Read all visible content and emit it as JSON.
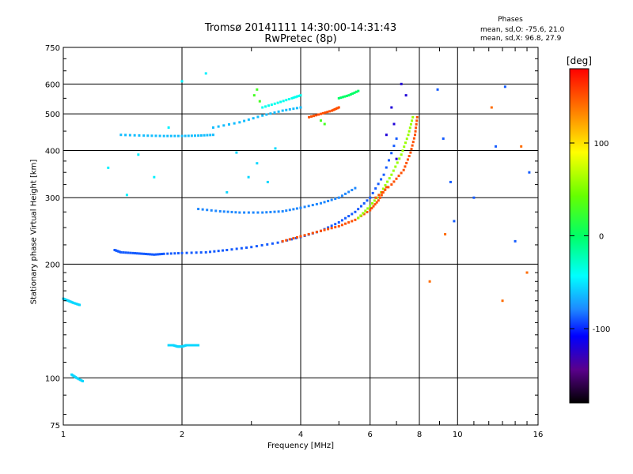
{
  "chart_data": {
    "type": "scatter",
    "title": "Tromsø 20141111 14:30:00-14:31:43",
    "subtitle": "RwPretec (8p)",
    "xlabel": "Frequency [MHz]",
    "ylabel": "Stationary phase Virtual Height [km]",
    "x_scale": "log",
    "y_scale": "log",
    "xlim": [
      1,
      16
    ],
    "ylim": [
      75,
      750
    ],
    "x_ticks": [
      1,
      2,
      4,
      6,
      8,
      10,
      16
    ],
    "y_ticks": [
      75,
      100,
      200,
      300,
      400,
      500,
      600,
      750
    ],
    "grid": true,
    "colorbar": {
      "unit": "[deg]",
      "range": [
        -180,
        180
      ],
      "ticks": [
        100,
        0,
        -100
      ]
    },
    "phases_header": "Phases",
    "stats": [
      "mean, sd,O: -75.6, 21.0",
      "mean, sd,X:  96.8, 27.9"
    ],
    "traces": [
      {
        "name": "",
        "phase": -100,
        "x": [
          1.35,
          1.4,
          1.5,
          1.6,
          1.7,
          1.8,
          2.0,
          2.3,
          2.6,
          3.0,
          3.5,
          4.0,
          4.5,
          5.0,
          5.5,
          6.0,
          6.5,
          7.0
        ],
        "y": [
          218,
          215,
          214,
          213,
          212,
          213,
          214,
          215,
          218,
          222,
          228,
          236,
          245,
          258,
          275,
          300,
          345,
          430
        ]
      },
      {
        "name": "",
        "phase": 150,
        "x": [
          3.6,
          4.0,
          4.5,
          5.0,
          5.5,
          6.0,
          6.3,
          6.6
        ],
        "y": [
          230,
          237,
          245,
          252,
          262,
          278,
          295,
          320
        ]
      },
      {
        "name": "",
        "phase": 60,
        "x": [
          5.6,
          6.0,
          6.4,
          6.8,
          7.2,
          7.5,
          7.7
        ],
        "y": [
          265,
          285,
          310,
          345,
          390,
          440,
          490
        ]
      },
      {
        "name": "",
        "phase": 150,
        "x": [
          6.2,
          6.8,
          7.3,
          7.6,
          7.8,
          7.9
        ],
        "y": [
          300,
          325,
          355,
          395,
          440,
          490
        ]
      },
      {
        "name": "",
        "phase": -70,
        "x": [
          1.4,
          1.6,
          1.8,
          2.0,
          2.2,
          2.4
        ],
        "y": [
          440,
          438,
          437,
          437,
          438,
          440
        ]
      },
      {
        "name": "",
        "phase": -70,
        "x": [
          2.4,
          2.8,
          3.2,
          3.6,
          4.0
        ],
        "y": [
          460,
          475,
          495,
          510,
          520
        ]
      },
      {
        "name": "",
        "phase": -40,
        "x": [
          3.2,
          3.5,
          3.8,
          4.0
        ],
        "y": [
          520,
          535,
          550,
          560
        ]
      },
      {
        "name": "",
        "phase": 150,
        "x": [
          4.2,
          4.5,
          4.8,
          5.0
        ],
        "y": [
          490,
          500,
          510,
          520
        ]
      },
      {
        "name": "",
        "phase": 0,
        "x": [
          5.0,
          5.3,
          5.6
        ],
        "y": [
          550,
          560,
          575
        ]
      },
      {
        "name": "",
        "phase": -90,
        "x": [
          2.2,
          2.5,
          2.8,
          3.2,
          3.6,
          4.0,
          4.5,
          5.0,
          5.5
        ],
        "y": [
          280,
          276,
          274,
          274,
          276,
          282,
          290,
          300,
          318
        ]
      },
      {
        "name": "",
        "phase": -60,
        "x": [
          1.85,
          1.9,
          1.95,
          2.0,
          2.05,
          2.1,
          2.2
        ],
        "y": [
          122,
          122,
          121,
          121,
          122,
          122,
          122
        ]
      },
      {
        "name": "",
        "phase": -60,
        "x": [
          1.0,
          1.03,
          1.06,
          1.1
        ],
        "y": [
          162,
          160,
          158,
          156
        ]
      },
      {
        "name": "",
        "phase": -60,
        "x": [
          1.05,
          1.08,
          1.12
        ],
        "y": [
          102,
          100,
          98
        ]
      }
    ],
    "scattered": [
      {
        "name": "",
        "phase": -60,
        "x": [
          2.6,
          2.75,
          2.95,
          3.1,
          3.3,
          3.45
        ],
        "y": [
          310,
          395,
          340,
          370,
          330,
          405
        ]
      },
      {
        "name": "",
        "phase": -130,
        "x": [
          6.6,
          6.8,
          7.0,
          7.2,
          6.9,
          7.4
        ],
        "y": [
          440,
          520,
          380,
          600,
          470,
          560
        ]
      },
      {
        "name": "",
        "phase": 30,
        "x": [
          3.05,
          3.1,
          3.15,
          4.5,
          4.6
        ],
        "y": [
          560,
          580,
          540,
          480,
          470
        ]
      },
      {
        "name": "",
        "phase": -100,
        "x": [
          8.9,
          9.2,
          9.6,
          9.8,
          11.0,
          12.5,
          13.2,
          14.0,
          15.2
        ],
        "y": [
          580,
          430,
          330,
          260,
          300,
          410,
          590,
          230,
          350
        ]
      },
      {
        "name": "",
        "phase": 140,
        "x": [
          8.5,
          9.3,
          12.2,
          13.0,
          14.5,
          15.0
        ],
        "y": [
          180,
          240,
          520,
          160,
          410,
          190
        ]
      },
      {
        "name": "",
        "phase": -50,
        "x": [
          1.3,
          1.45,
          1.55,
          1.7,
          1.85,
          2.0,
          2.3
        ],
        "y": [
          360,
          305,
          390,
          340,
          460,
          610,
          640
        ]
      }
    ]
  }
}
